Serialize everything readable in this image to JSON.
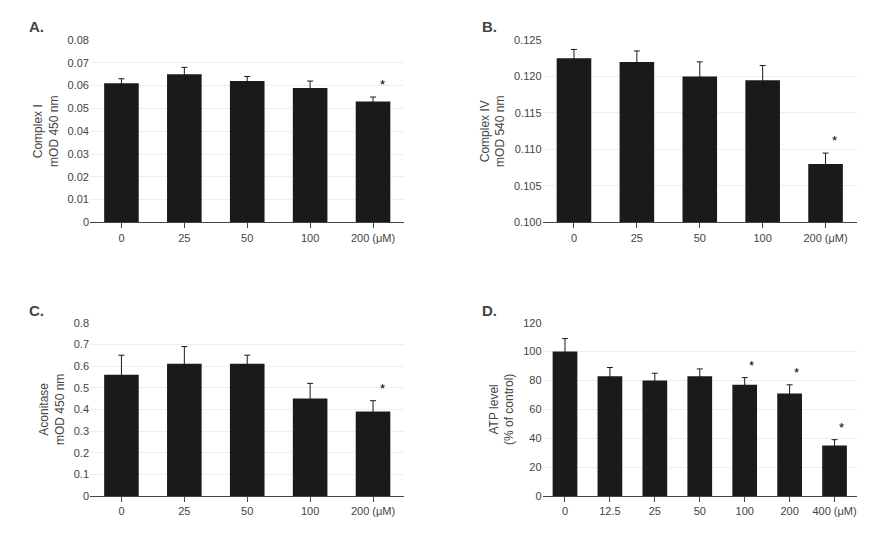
{
  "chart_data": [
    {
      "type": "bar",
      "title": "A.",
      "categories": [
        "0",
        "25",
        "50",
        "100",
        "200 (μM)"
      ],
      "values": [
        0.061,
        0.065,
        0.062,
        0.059,
        0.053
      ],
      "errors": [
        0.002,
        0.003,
        0.002,
        0.003,
        0.002
      ],
      "ylabel": "Complex I\nmOD 450 nm",
      "ylim": [
        0,
        0.08
      ],
      "yticks": [
        0,
        0.01,
        0.02,
        0.03,
        0.04,
        0.05,
        0.06,
        0.07,
        0.08
      ],
      "annotations": [
        {
          "x": "200 (μM)",
          "text": "*"
        }
      ],
      "color": "#1a1a1a",
      "grid": true
    },
    {
      "type": "bar",
      "title": "B.",
      "categories": [
        "0",
        "25",
        "50",
        "100",
        "200 (μM)"
      ],
      "values": [
        0.1225,
        0.122,
        0.12,
        0.1195,
        0.108
      ],
      "errors": [
        0.0012,
        0.0015,
        0.002,
        0.002,
        0.0015
      ],
      "ylabel": "Complex IV\nmOD 540 nm",
      "ylim": [
        0.1,
        0.125
      ],
      "yticks": [
        {
          "value": 0.1,
          "label": "0.100"
        },
        0.105,
        {
          "value": 0.11,
          "label": "0.110"
        },
        0.115,
        {
          "value": 0.12,
          "label": "0.120"
        },
        0.125
      ],
      "annotations": [
        {
          "x": "200 (μM)",
          "text": "*"
        }
      ],
      "color": "#1a1a1a",
      "grid": true
    },
    {
      "type": "bar",
      "title": "C.",
      "categories": [
        "0",
        "25",
        "50",
        "100",
        "200 (μM)"
      ],
      "values": [
        0.56,
        0.61,
        0.61,
        0.45,
        0.39
      ],
      "errors": [
        0.09,
        0.08,
        0.04,
        0.07,
        0.05
      ],
      "ylabel": "Aconitase\nmOD 450 nm",
      "ylim": [
        0,
        0.8
      ],
      "yticks": [
        0,
        0.1,
        0.2,
        0.3,
        0.4,
        0.5,
        0.6,
        0.7,
        0.8
      ],
      "annotations": [
        {
          "x": "200 (μM)",
          "text": "*"
        }
      ],
      "color": "#1a1a1a",
      "grid": true
    },
    {
      "type": "bar",
      "title": "D.",
      "categories": [
        "0",
        "12.5",
        "25",
        "50",
        "100",
        "200",
        "400 (μM)"
      ],
      "values": [
        100,
        83,
        80,
        83,
        77,
        71,
        35
      ],
      "errors": [
        9,
        6,
        5,
        5,
        5,
        6,
        4
      ],
      "ylabel": "ATP level\n(% of control)",
      "ylim": [
        0,
        120
      ],
      "yticks": [
        0,
        20,
        40,
        60,
        80,
        100,
        120
      ],
      "annotations": [
        {
          "x": "200",
          "text": "*"
        },
        {
          "x": "400 (μM)",
          "text": "*"
        },
        {
          "x": "100",
          "text": "*"
        }
      ],
      "color": "#1a1a1a",
      "grid": true
    }
  ]
}
